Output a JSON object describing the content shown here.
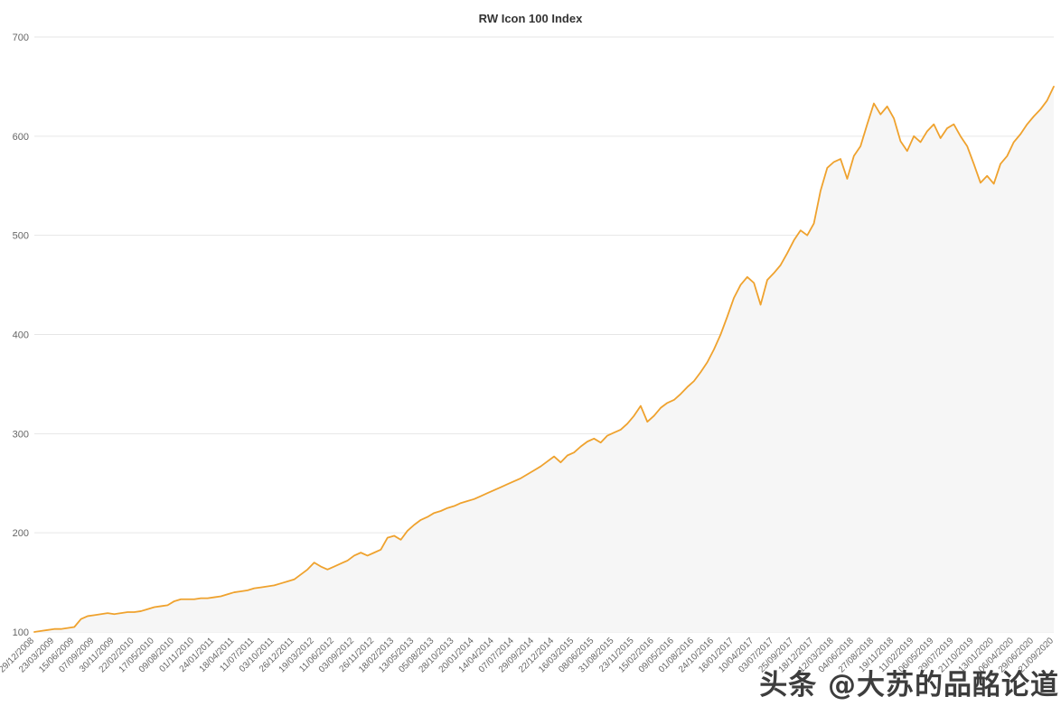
{
  "chart_data": {
    "type": "line",
    "title": "RW Icon 100 Index",
    "xlabel": "",
    "ylabel": "",
    "ylim": [
      100,
      700
    ],
    "y_ticks": [
      100,
      200,
      300,
      400,
      500,
      600,
      700
    ],
    "grid": "horizontal-only",
    "legend": "none",
    "x_tick_labels": [
      "29/12/2008",
      "23/03/2009",
      "15/06/2009",
      "07/09/2009",
      "30/11/2009",
      "22/02/2010",
      "17/05/2010",
      "09/08/2010",
      "01/11/2010",
      "24/01/2011",
      "18/04/2011",
      "11/07/2011",
      "03/10/2011",
      "26/12/2011",
      "19/03/2012",
      "11/06/2012",
      "03/09/2012",
      "26/11/2012",
      "18/02/2013",
      "13/05/2013",
      "05/08/2013",
      "28/10/2013",
      "20/01/2014",
      "14/04/2014",
      "07/07/2014",
      "29/09/2014",
      "22/12/2014",
      "16/03/2015",
      "08/06/2015",
      "31/08/2015",
      "23/11/2015",
      "15/02/2016",
      "09/05/2016",
      "01/08/2016",
      "24/10/2016",
      "16/01/2017",
      "10/04/2017",
      "03/07/2017",
      "25/09/2017",
      "18/12/2017",
      "12/03/2018",
      "04/06/2018",
      "27/08/2018",
      "19/11/2018",
      "11/02/2019",
      "06/05/2019",
      "29/07/2019",
      "21/10/2019",
      "13/01/2020",
      "06/04/2020",
      "29/06/2020",
      "21/09/2020"
    ],
    "series": [
      {
        "name": "RW Icon 100 Index",
        "start_date": "29/12/2008",
        "interval_weeks": 4,
        "values": [
          100,
          101,
          102,
          103,
          103,
          104,
          105,
          113,
          116,
          117,
          118,
          119,
          118,
          119,
          120,
          120,
          121,
          123,
          125,
          126,
          127,
          131,
          133,
          133,
          133,
          134,
          134,
          135,
          136,
          138,
          140,
          141,
          142,
          144,
          145,
          146,
          147,
          149,
          151,
          153,
          158,
          163,
          170,
          166,
          163,
          166,
          169,
          172,
          177,
          180,
          177,
          180,
          183,
          195,
          197,
          193,
          202,
          208,
          213,
          216,
          220,
          222,
          225,
          227,
          230,
          232,
          234,
          237,
          240,
          243,
          246,
          249,
          252,
          255,
          259,
          263,
          267,
          272,
          277,
          271,
          278,
          281,
          287,
          292,
          295,
          291,
          298,
          301,
          304,
          310,
          318,
          328,
          312,
          318,
          326,
          331,
          334,
          340,
          347,
          353,
          362,
          372,
          385,
          400,
          418,
          437,
          450,
          458,
          452,
          430,
          455,
          462,
          470,
          482,
          495,
          505,
          500,
          512,
          545,
          568,
          574,
          577,
          557,
          580,
          590,
          612,
          633,
          622,
          630,
          618,
          595,
          585,
          600,
          594,
          605,
          612,
          598,
          608,
          612,
          600,
          590,
          572,
          553,
          560,
          552,
          572,
          580,
          594,
          602,
          612,
          620,
          627,
          636,
          650
        ]
      }
    ],
    "colors": {
      "line": "#efa22e",
      "area_fill": "#f6f6f6",
      "gridline": "#e6e6e6",
      "tick_text": "#666666",
      "title_text": "#333333",
      "background": "#ffffff"
    }
  },
  "watermark": {
    "text": "头条 @大苏的品酩论道",
    "color": "#3d3d3d"
  }
}
